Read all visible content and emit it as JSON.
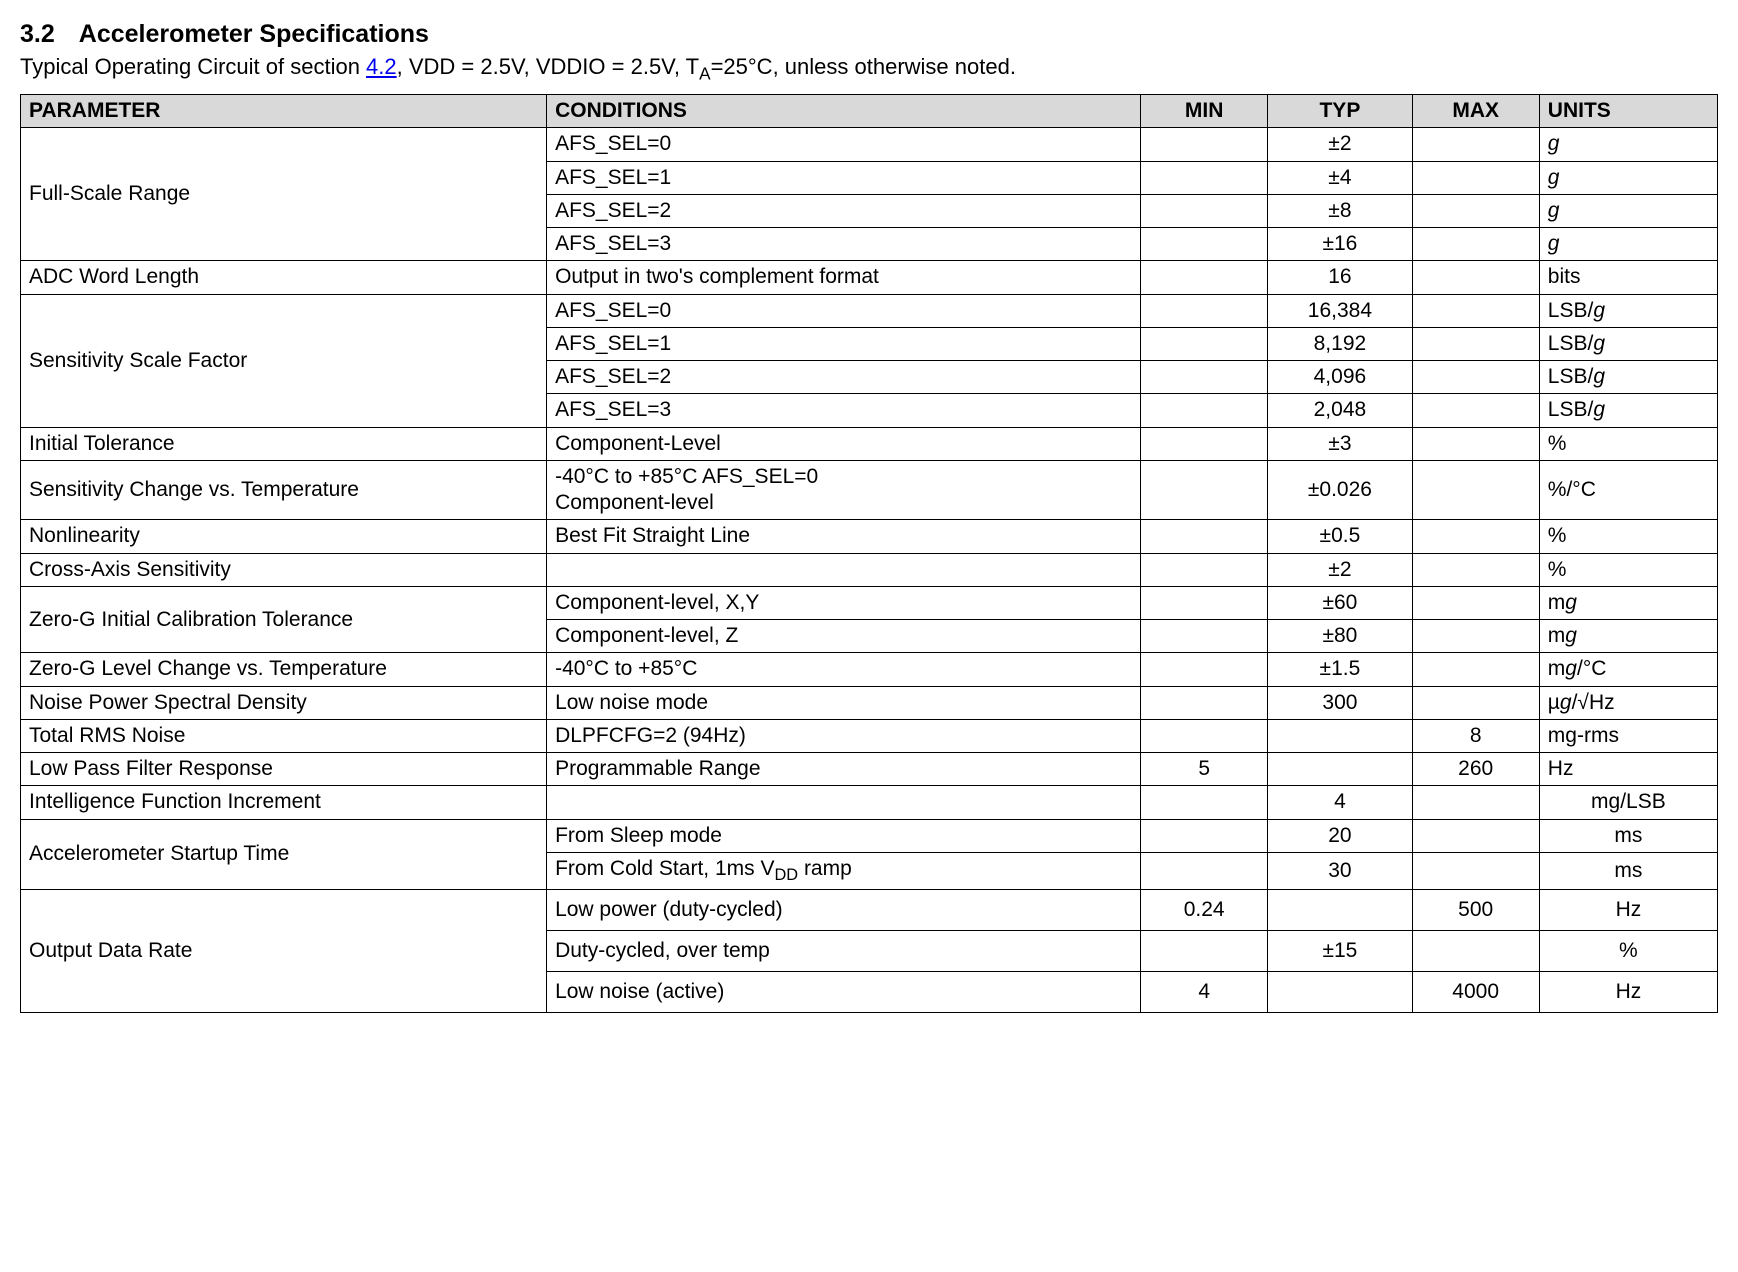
{
  "heading": {
    "number": "3.2",
    "title": "Accelerometer Specifications"
  },
  "intro": {
    "prefix": "Typical Operating Circuit of section ",
    "link_text": "4.2",
    "suffix": ", VDD = 2.5V, VDDIO = 2.5V, T",
    "ta_sub": "A",
    "tail": "=25°C, unless otherwise noted."
  },
  "table": {
    "headers": {
      "parameter": "PARAMETER",
      "conditions": "CONDITIONS",
      "min": "MIN",
      "typ": "TYP",
      "max": "MAX",
      "units": "UNITS"
    },
    "rows": [
      {
        "parameter": "Full-Scale Range",
        "rowspan": 4,
        "cells": {
          "conditions": "AFS_SEL=0",
          "min": "",
          "typ": "±2",
          "max": "",
          "units_html": "<span class='ital'>g</span>"
        }
      },
      {
        "cells": {
          "conditions": "AFS_SEL=1",
          "min": "",
          "typ": "±4",
          "max": "",
          "units_html": "<span class='ital'>g</span>"
        }
      },
      {
        "cells": {
          "conditions": "AFS_SEL=2",
          "min": "",
          "typ": "±8",
          "max": "",
          "units_html": "<span class='ital'>g</span>"
        }
      },
      {
        "cells": {
          "conditions": "AFS_SEL=3",
          "min": "",
          "typ": "±16",
          "max": "",
          "units_html": "<span class='ital'>g</span>"
        }
      },
      {
        "parameter": "ADC Word Length",
        "cells": {
          "conditions": "Output in two's complement format",
          "min": "",
          "typ": "16",
          "max": "",
          "units": "bits"
        }
      },
      {
        "parameter": "Sensitivity Scale Factor",
        "rowspan": 4,
        "cells": {
          "conditions": "AFS_SEL=0",
          "min": "",
          "typ": "16,384",
          "max": "",
          "units_html": "LSB/<span class='ital'>g</span>"
        }
      },
      {
        "cells": {
          "conditions": "AFS_SEL=1",
          "min": "",
          "typ": "8,192",
          "max": "",
          "units_html": "LSB/<span class='ital'>g</span>"
        }
      },
      {
        "cells": {
          "conditions": "AFS_SEL=2",
          "min": "",
          "typ": "4,096",
          "max": "",
          "units_html": "LSB/<span class='ital'>g</span>"
        }
      },
      {
        "cells": {
          "conditions": "AFS_SEL=3",
          "min": "",
          "typ": "2,048",
          "max": "",
          "units_html": "LSB/<span class='ital'>g</span>"
        }
      },
      {
        "parameter": "Initial Tolerance",
        "cells": {
          "conditions": "Component-Level",
          "min": "",
          "typ": "±3",
          "max": "",
          "units": "%"
        }
      },
      {
        "parameter": "Sensitivity Change vs. Temperature",
        "cells": {
          "conditions_html": "-40°C to +85°C AFS_SEL=0<br>Component-level",
          "min": "",
          "typ": "±0.026",
          "max": "",
          "units": "%/°C"
        }
      },
      {
        "parameter": "Nonlinearity",
        "cells": {
          "conditions": "Best Fit Straight Line",
          "min": "",
          "typ": "±0.5",
          "max": "",
          "units": "%"
        }
      },
      {
        "parameter": "Cross-Axis Sensitivity",
        "cells": {
          "conditions": "",
          "min": "",
          "typ": "±2",
          "max": "",
          "units": "%"
        }
      },
      {
        "parameter": "Zero-G Initial Calibration Tolerance",
        "rowspan": 2,
        "cells": {
          "conditions": "Component-level, X,Y",
          "min": "",
          "typ": "±60",
          "max": "",
          "units_html": "m<span class='ital'>g</span>"
        }
      },
      {
        "cells": {
          "conditions": "Component-level, Z",
          "min": "",
          "typ": "±80",
          "max": "",
          "units_html": "m<span class='ital'>g</span>"
        }
      },
      {
        "parameter": "Zero-G Level Change vs. Temperature",
        "cells": {
          "conditions": "-40°C to +85°C",
          "min": "",
          "typ": "±1.5",
          "max": "",
          "units_html": "m<span class='ital'>g</span>/°C"
        }
      },
      {
        "parameter": "Noise Power Spectral Density",
        "cells": {
          "conditions": "Low noise mode",
          "min": "",
          "typ": "300",
          "max": "",
          "units_html": "µ<span class='ital'>g</span>/√Hz"
        }
      },
      {
        "parameter": "Total RMS Noise",
        "cells": {
          "conditions": "DLPFCFG=2 (94Hz)",
          "min": "",
          "typ": "",
          "max": "8",
          "units": "mg-rms"
        }
      },
      {
        "parameter": "Low Pass Filter Response",
        "cells": {
          "conditions": "Programmable Range",
          "min": "5",
          "typ": "",
          "max": "260",
          "units": "Hz"
        }
      },
      {
        "parameter": "Intelligence Function Increment",
        "cells": {
          "conditions": "",
          "min": "",
          "typ": "4",
          "max": "",
          "units": "mg/LSB",
          "units_align": "center"
        }
      },
      {
        "parameter": "Accelerometer Startup Time",
        "rowspan": 2,
        "cells": {
          "conditions": "From Sleep mode",
          "min": "",
          "typ": "20",
          "max": "",
          "units": "ms",
          "units_align": "center"
        }
      },
      {
        "cells": {
          "conditions_html": "From Cold Start, 1ms V<span class='sub'>DD</span> ramp",
          "min": "",
          "typ": "30",
          "max": "",
          "units": "ms",
          "units_align": "center"
        }
      },
      {
        "parameter": "Output Data Rate",
        "rowspan": 3,
        "cells": {
          "conditions": "Low power (duty-cycled)",
          "min": "0.24",
          "typ": "",
          "max": "500",
          "units": "Hz",
          "units_align": "center",
          "tall": true
        }
      },
      {
        "cells": {
          "conditions": "Duty-cycled, over temp",
          "min": "",
          "typ": "±15",
          "max": "",
          "units": "%",
          "units_align": "center",
          "tall": true
        }
      },
      {
        "cells": {
          "conditions": "Low noise (active)",
          "min": "4",
          "typ": "",
          "max": "4000",
          "units": "Hz",
          "units_align": "center",
          "tall": true
        }
      }
    ]
  }
}
